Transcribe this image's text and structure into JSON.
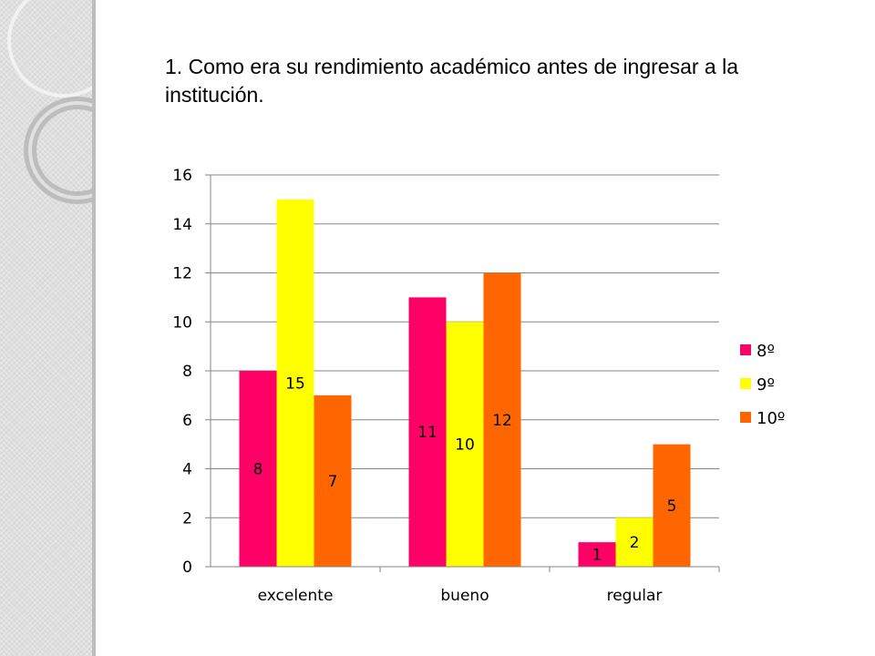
{
  "slide": {
    "title": "1. Como era su rendimiento académico antes de ingresar a la institución."
  },
  "colors": {
    "background": "#ffffff",
    "side_band": "#d9d9d9",
    "axis": "#868686"
  },
  "chart_data": {
    "type": "bar",
    "title": "",
    "xlabel": "",
    "ylabel": "",
    "categories": [
      "excelente",
      "bueno",
      "regular"
    ],
    "series": [
      {
        "name": "8º",
        "color": "#ff0066",
        "values": [
          8,
          11,
          1
        ]
      },
      {
        "name": "9º",
        "color": "#ffff00",
        "values": [
          15,
          10,
          2
        ]
      },
      {
        "name": "10º",
        "color": "#ff6600",
        "values": [
          7,
          12,
          5
        ]
      }
    ],
    "ylim": [
      0,
      16
    ],
    "yticks": [
      0,
      2,
      4,
      6,
      8,
      10,
      12,
      14,
      16
    ],
    "grid": true,
    "legend_position": "right",
    "data_labels": true
  }
}
